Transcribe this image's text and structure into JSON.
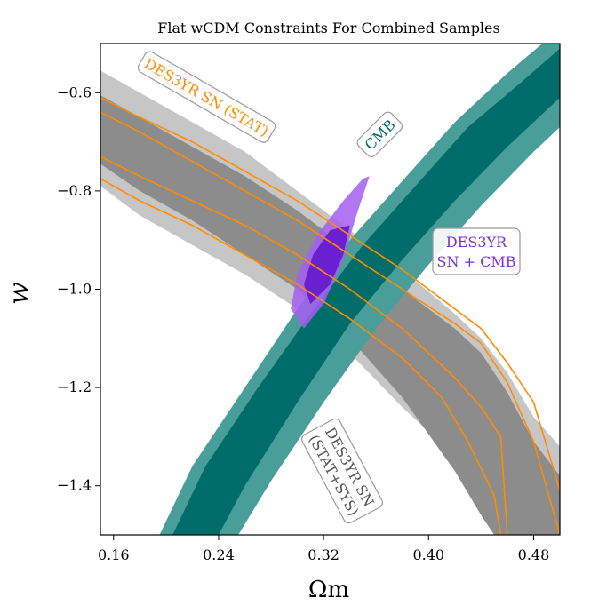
{
  "chart_data": {
    "type": "contour",
    "title": "Flat wCDM Constraints For Combined Samples",
    "xlabel": "Ωm",
    "ylabel": "w",
    "xlim": [
      0.15,
      0.5
    ],
    "ylim": [
      -1.5,
      -0.5
    ],
    "xticks": [
      {
        "value": 0.16,
        "label": "0.16"
      },
      {
        "value": 0.24,
        "label": "0.24"
      },
      {
        "value": 0.32,
        "label": "0.32"
      },
      {
        "value": 0.4,
        "label": "0.40"
      },
      {
        "value": 0.48,
        "label": "0.48"
      }
    ],
    "yticks": [
      {
        "value": -0.6,
        "label": "−0.6"
      },
      {
        "value": -0.8,
        "label": "−0.8"
      },
      {
        "value": -1.0,
        "label": "−1.0"
      },
      {
        "value": -1.2,
        "label": "−1.2"
      },
      {
        "value": -1.4,
        "label": "−1.4"
      }
    ],
    "grid": false,
    "colors": {
      "sn_sys_outer": "#c6c6c6",
      "sn_sys_inner": "#8c8c8c",
      "sn_stat": "#ff8c00",
      "cmb_outer": "#4a9e9a",
      "cmb_inner": "#006d6a",
      "combined_outer": "#a35ef0",
      "combined_inner": "#6a1fd0"
    },
    "annotations": {
      "sn_stat": "DES3YR SN (STAT)",
      "cmb": "CMB",
      "combined_line1": "DES3YR",
      "combined_line2": "SN + CMB",
      "sn_sys_line1": "DES3YR SN",
      "sn_sys_line2": "(STAT+SYS)"
    },
    "series": [
      {
        "name": "DES3YR SN (STAT+SYS)",
        "kind": "filled",
        "contours": [
          {
            "level": "95%",
            "points": [
              [
                0.15,
                -0.555
              ],
              [
                0.18,
                -0.6
              ],
              [
                0.22,
                -0.66
              ],
              [
                0.26,
                -0.72
              ],
              [
                0.3,
                -0.8
              ],
              [
                0.34,
                -0.88
              ],
              [
                0.38,
                -0.96
              ],
              [
                0.42,
                -1.05
              ],
              [
                0.44,
                -1.1
              ],
              [
                0.46,
                -1.17
              ],
              [
                0.48,
                -1.26
              ],
              [
                0.5,
                -1.32
              ],
              [
                0.5,
                -1.5
              ],
              [
                0.47,
                -1.5
              ],
              [
                0.45,
                -1.42
              ],
              [
                0.42,
                -1.34
              ],
              [
                0.38,
                -1.24
              ],
              [
                0.34,
                -1.13
              ],
              [
                0.3,
                -1.04
              ],
              [
                0.26,
                -0.97
              ],
              [
                0.22,
                -0.91
              ],
              [
                0.18,
                -0.85
              ],
              [
                0.15,
                -0.79
              ]
            ]
          },
          {
            "level": "68%",
            "points": [
              [
                0.15,
                -0.605
              ],
              [
                0.18,
                -0.65
              ],
              [
                0.22,
                -0.71
              ],
              [
                0.26,
                -0.77
              ],
              [
                0.3,
                -0.84
              ],
              [
                0.34,
                -0.92
              ],
              [
                0.38,
                -1.0
              ],
              [
                0.42,
                -1.08
              ],
              [
                0.44,
                -1.13
              ],
              [
                0.46,
                -1.21
              ],
              [
                0.48,
                -1.31
              ],
              [
                0.5,
                -1.38
              ],
              [
                0.5,
                -1.5
              ],
              [
                0.45,
                -1.5
              ],
              [
                0.44,
                -1.46
              ],
              [
                0.42,
                -1.37
              ],
              [
                0.38,
                -1.22
              ],
              [
                0.34,
                -1.1
              ],
              [
                0.3,
                -1.0
              ],
              [
                0.26,
                -0.93
              ],
              [
                0.22,
                -0.86
              ],
              [
                0.18,
                -0.8
              ],
              [
                0.15,
                -0.745
              ]
            ]
          }
        ]
      },
      {
        "name": "DES3YR SN (STAT)",
        "kind": "lines",
        "contours": [
          {
            "level": "95% upper",
            "points": [
              [
                0.15,
                -0.61
              ],
              [
                0.18,
                -0.65
              ],
              [
                0.22,
                -0.7
              ],
              [
                0.26,
                -0.76
              ],
              [
                0.3,
                -0.82
              ],
              [
                0.34,
                -0.89
              ],
              [
                0.38,
                -0.96
              ],
              [
                0.42,
                -1.04
              ],
              [
                0.44,
                -1.08
              ],
              [
                0.46,
                -1.15
              ],
              [
                0.48,
                -1.23
              ],
              [
                0.5,
                -1.41
              ]
            ]
          },
          {
            "level": "68% upper",
            "points": [
              [
                0.15,
                -0.64
              ],
              [
                0.18,
                -0.68
              ],
              [
                0.22,
                -0.74
              ],
              [
                0.26,
                -0.8
              ],
              [
                0.3,
                -0.86
              ],
              [
                0.34,
                -0.93
              ],
              [
                0.38,
                -1.0
              ],
              [
                0.42,
                -1.07
              ],
              [
                0.44,
                -1.11
              ],
              [
                0.46,
                -1.19
              ],
              [
                0.48,
                -1.31
              ],
              [
                0.5,
                -1.5
              ]
            ]
          },
          {
            "level": "68% lower",
            "points": [
              [
                0.15,
                -0.73
              ],
              [
                0.18,
                -0.77
              ],
              [
                0.22,
                -0.82
              ],
              [
                0.26,
                -0.87
              ],
              [
                0.3,
                -0.93
              ],
              [
                0.34,
                -1.0
              ],
              [
                0.38,
                -1.08
              ],
              [
                0.42,
                -1.18
              ],
              [
                0.44,
                -1.24
              ],
              [
                0.455,
                -1.3
              ],
              [
                0.46,
                -1.5
              ]
            ]
          },
          {
            "level": "95% lower",
            "points": [
              [
                0.15,
                -0.775
              ],
              [
                0.18,
                -0.82
              ],
              [
                0.22,
                -0.87
              ],
              [
                0.26,
                -0.93
              ],
              [
                0.3,
                -0.99
              ],
              [
                0.34,
                -1.06
              ],
              [
                0.38,
                -1.14
              ],
              [
                0.41,
                -1.22
              ],
              [
                0.43,
                -1.31
              ],
              [
                0.45,
                -1.42
              ],
              [
                0.455,
                -1.5
              ]
            ]
          }
        ]
      },
      {
        "name": "CMB",
        "kind": "band",
        "contours": [
          {
            "level": "95% upper",
            "points": [
              [
                0.195,
                -1.5
              ],
              [
                0.22,
                -1.36
              ],
              [
                0.26,
                -1.2
              ],
              [
                0.3,
                -1.04
              ],
              [
                0.34,
                -0.9
              ],
              [
                0.38,
                -0.78
              ],
              [
                0.42,
                -0.66
              ],
              [
                0.46,
                -0.56
              ],
              [
                0.5,
                -0.47
              ]
            ]
          },
          {
            "level": "68% upper",
            "points": [
              [
                0.205,
                -1.5
              ],
              [
                0.23,
                -1.36
              ],
              [
                0.27,
                -1.2
              ],
              [
                0.31,
                -1.05
              ],
              [
                0.35,
                -0.91
              ],
              [
                0.39,
                -0.79
              ],
              [
                0.43,
                -0.67
              ],
              [
                0.47,
                -0.58
              ],
              [
                0.5,
                -0.51
              ]
            ]
          },
          {
            "level": "68% lower",
            "points": [
              [
                0.24,
                -1.5
              ],
              [
                0.26,
                -1.4
              ],
              [
                0.3,
                -1.23
              ],
              [
                0.34,
                -1.07
              ],
              [
                0.38,
                -0.94
              ],
              [
                0.42,
                -0.82
              ],
              [
                0.46,
                -0.71
              ],
              [
                0.5,
                -0.61
              ]
            ]
          },
          {
            "level": "95% lower",
            "points": [
              [
                0.255,
                -1.5
              ],
              [
                0.28,
                -1.39
              ],
              [
                0.32,
                -1.23
              ],
              [
                0.36,
                -1.08
              ],
              [
                0.4,
                -0.95
              ],
              [
                0.44,
                -0.83
              ],
              [
                0.48,
                -0.72
              ],
              [
                0.5,
                -0.67
              ]
            ]
          }
        ]
      },
      {
        "name": "DES3YR SN + CMB",
        "kind": "filled",
        "contours": [
          {
            "level": "95%",
            "points": [
              [
                0.355,
                -0.77
              ],
              [
                0.345,
                -0.85
              ],
              [
                0.335,
                -0.94
              ],
              [
                0.32,
                -1.03
              ],
              [
                0.305,
                -1.08
              ],
              [
                0.295,
                -1.04
              ],
              [
                0.3,
                -0.97
              ],
              [
                0.315,
                -0.89
              ],
              [
                0.335,
                -0.82
              ],
              [
                0.35,
                -0.775
              ]
            ]
          },
          {
            "level": "68%",
            "points": [
              [
                0.34,
                -0.87
              ],
              [
                0.335,
                -0.93
              ],
              [
                0.325,
                -0.99
              ],
              [
                0.31,
                -1.03
              ],
              [
                0.305,
                -0.99
              ],
              [
                0.312,
                -0.93
              ],
              [
                0.325,
                -0.88
              ]
            ]
          }
        ]
      }
    ]
  }
}
